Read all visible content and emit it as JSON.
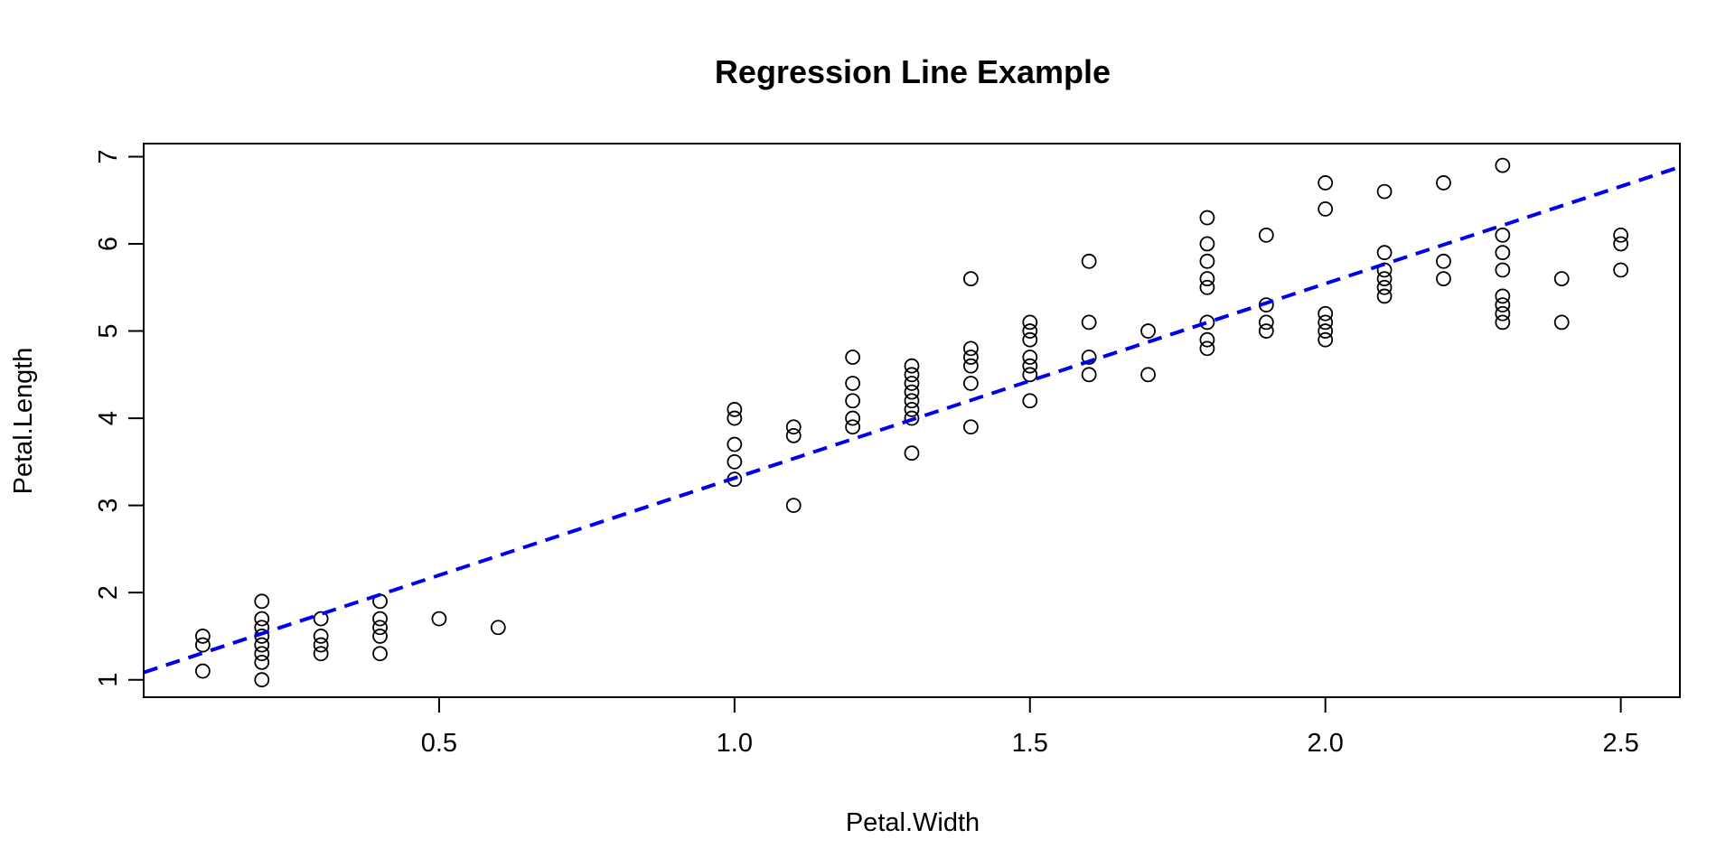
{
  "chart_data": {
    "type": "scatter",
    "title": "Regression Line Example",
    "xlabel": "Petal.Width",
    "ylabel": "Petal.Length",
    "xlim": [
      0.0,
      2.6
    ],
    "ylim": [
      0.8,
      7.15
    ],
    "x_ticks": [
      0.5,
      1.0,
      1.5,
      2.0,
      2.5
    ],
    "x_tick_labels": [
      "0.5",
      "1.0",
      "1.5",
      "2.0",
      "2.5"
    ],
    "y_ticks": [
      1,
      2,
      3,
      4,
      5,
      6,
      7
    ],
    "y_tick_labels": [
      "1",
      "2",
      "3",
      "4",
      "5",
      "6",
      "7"
    ],
    "grid": false,
    "point_color": "#000000",
    "regression_line": {
      "style": "dashed",
      "color": "#0000ee",
      "intercept": 1.084,
      "slope": 2.23
    },
    "points": [
      [
        0.1,
        1.1
      ],
      [
        0.1,
        1.4
      ],
      [
        0.1,
        1.5
      ],
      [
        0.2,
        1.0
      ],
      [
        0.2,
        1.2
      ],
      [
        0.2,
        1.3
      ],
      [
        0.2,
        1.4
      ],
      [
        0.2,
        1.5
      ],
      [
        0.2,
        1.6
      ],
      [
        0.2,
        1.7
      ],
      [
        0.2,
        1.9
      ],
      [
        0.3,
        1.3
      ],
      [
        0.3,
        1.4
      ],
      [
        0.3,
        1.5
      ],
      [
        0.3,
        1.7
      ],
      [
        0.4,
        1.3
      ],
      [
        0.4,
        1.5
      ],
      [
        0.4,
        1.6
      ],
      [
        0.4,
        1.7
      ],
      [
        0.4,
        1.9
      ],
      [
        0.5,
        1.7
      ],
      [
        0.6,
        1.6
      ],
      [
        1.0,
        3.3
      ],
      [
        1.0,
        3.5
      ],
      [
        1.0,
        3.7
      ],
      [
        1.0,
        4.0
      ],
      [
        1.0,
        4.1
      ],
      [
        1.1,
        3.0
      ],
      [
        1.1,
        3.8
      ],
      [
        1.1,
        3.9
      ],
      [
        1.2,
        3.9
      ],
      [
        1.2,
        4.0
      ],
      [
        1.2,
        4.2
      ],
      [
        1.2,
        4.4
      ],
      [
        1.2,
        4.7
      ],
      [
        1.3,
        3.6
      ],
      [
        1.3,
        4.0
      ],
      [
        1.3,
        4.1
      ],
      [
        1.3,
        4.2
      ],
      [
        1.3,
        4.3
      ],
      [
        1.3,
        4.4
      ],
      [
        1.3,
        4.5
      ],
      [
        1.3,
        4.6
      ],
      [
        1.4,
        3.9
      ],
      [
        1.4,
        4.4
      ],
      [
        1.4,
        4.6
      ],
      [
        1.4,
        4.7
      ],
      [
        1.4,
        4.8
      ],
      [
        1.4,
        5.6
      ],
      [
        1.5,
        4.2
      ],
      [
        1.5,
        4.5
      ],
      [
        1.5,
        4.6
      ],
      [
        1.5,
        4.7
      ],
      [
        1.5,
        4.9
      ],
      [
        1.5,
        5.0
      ],
      [
        1.5,
        5.1
      ],
      [
        1.6,
        4.5
      ],
      [
        1.6,
        4.7
      ],
      [
        1.6,
        5.1
      ],
      [
        1.6,
        5.8
      ],
      [
        1.7,
        4.5
      ],
      [
        1.7,
        5.0
      ],
      [
        1.8,
        4.8
      ],
      [
        1.8,
        4.9
      ],
      [
        1.8,
        5.1
      ],
      [
        1.8,
        5.5
      ],
      [
        1.8,
        5.6
      ],
      [
        1.8,
        5.8
      ],
      [
        1.8,
        6.0
      ],
      [
        1.8,
        6.3
      ],
      [
        1.9,
        5.0
      ],
      [
        1.9,
        5.1
      ],
      [
        1.9,
        5.3
      ],
      [
        1.9,
        6.1
      ],
      [
        2.0,
        4.9
      ],
      [
        2.0,
        5.0
      ],
      [
        2.0,
        5.1
      ],
      [
        2.0,
        5.2
      ],
      [
        2.0,
        6.4
      ],
      [
        2.0,
        6.7
      ],
      [
        2.1,
        5.4
      ],
      [
        2.1,
        5.5
      ],
      [
        2.1,
        5.6
      ],
      [
        2.1,
        5.7
      ],
      [
        2.1,
        5.9
      ],
      [
        2.1,
        6.6
      ],
      [
        2.2,
        5.6
      ],
      [
        2.2,
        5.8
      ],
      [
        2.2,
        6.7
      ],
      [
        2.3,
        5.1
      ],
      [
        2.3,
        5.2
      ],
      [
        2.3,
        5.3
      ],
      [
        2.3,
        5.4
      ],
      [
        2.3,
        5.7
      ],
      [
        2.3,
        5.9
      ],
      [
        2.3,
        6.1
      ],
      [
        2.3,
        6.9
      ],
      [
        2.4,
        5.1
      ],
      [
        2.4,
        5.6
      ],
      [
        2.5,
        5.7
      ],
      [
        2.5,
        6.0
      ],
      [
        2.5,
        6.1
      ]
    ]
  }
}
